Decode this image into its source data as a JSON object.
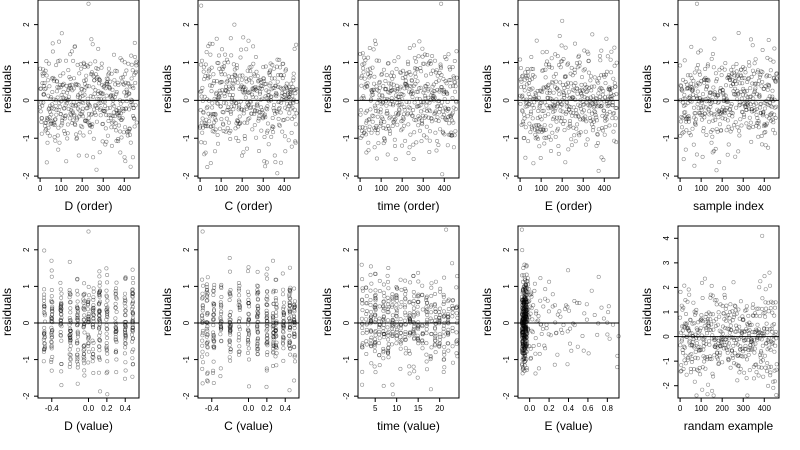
{
  "chart_data": [
    {
      "type": "scatter",
      "xlabel": "D (order)",
      "ylabel": "residuals",
      "xlim": [
        -10,
        470
      ],
      "ylim": [
        -2.05,
        2.65
      ],
      "xticks": [
        "0",
        "100",
        "200",
        "300",
        "400"
      ],
      "xtick_values": [
        0,
        100,
        200,
        300,
        400
      ],
      "yticks": [
        "-2",
        "-1",
        "0",
        "1",
        "2"
      ],
      "ytick_values": [
        -2,
        -1,
        0,
        1,
        2
      ],
      "hline": 0,
      "distribution": "order",
      "points_n": 460,
      "seed": 11,
      "outlier": {
        "x": 230,
        "y": 2.55
      }
    },
    {
      "type": "scatter",
      "xlabel": "C (order)",
      "ylabel": "residuals",
      "xlim": [
        -10,
        470
      ],
      "ylim": [
        -2.05,
        2.65
      ],
      "xticks": [
        "0",
        "100",
        "200",
        "300",
        "400"
      ],
      "xtick_values": [
        0,
        100,
        200,
        300,
        400
      ],
      "yticks": [
        "-2",
        "-1",
        "0",
        "1",
        "2"
      ],
      "ytick_values": [
        -2,
        -1,
        0,
        1,
        2
      ],
      "hline": 0,
      "distribution": "order",
      "points_n": 460,
      "seed": 23,
      "outlier": {
        "x": 5,
        "y": 2.5
      }
    },
    {
      "type": "scatter",
      "xlabel": "time (order)",
      "ylabel": "residuals",
      "xlim": [
        -10,
        470
      ],
      "ylim": [
        -2.05,
        2.65
      ],
      "xticks": [
        "0",
        "100",
        "200",
        "300",
        "400"
      ],
      "xtick_values": [
        0,
        100,
        200,
        300,
        400
      ],
      "yticks": [
        "-2",
        "-1",
        "0",
        "1",
        "2"
      ],
      "ytick_values": [
        -2,
        -1,
        0,
        1,
        2
      ],
      "hline": 0,
      "distribution": "order",
      "points_n": 460,
      "seed": 37,
      "outlier": {
        "x": 385,
        "y": 2.55
      }
    },
    {
      "type": "scatter",
      "xlabel": "E (order)",
      "ylabel": "residuals",
      "xlim": [
        -10,
        470
      ],
      "ylim": [
        -2.05,
        2.65
      ],
      "xticks": [
        "0",
        "100",
        "200",
        "300",
        "400"
      ],
      "xtick_values": [
        0,
        100,
        200,
        300,
        400
      ],
      "yticks": [
        "-2",
        "-1",
        "0",
        "1",
        "2"
      ],
      "ytick_values": [
        -2,
        -1,
        0,
        1,
        2
      ],
      "hline": 0,
      "distribution": "order",
      "points_n": 460,
      "seed": 41,
      "outlier": {
        "x": 200,
        "y": 2.1
      }
    },
    {
      "type": "scatter",
      "xlabel": "sample index",
      "ylabel": "residuals",
      "xlim": [
        -10,
        470
      ],
      "ylim": [
        -2.05,
        2.65
      ],
      "xticks": [
        "0",
        "100",
        "200",
        "300",
        "400"
      ],
      "xtick_values": [
        0,
        100,
        200,
        300,
        400
      ],
      "yticks": [
        "-2",
        "-1",
        "0",
        "1",
        "2"
      ],
      "ytick_values": [
        -2,
        -1,
        0,
        1,
        2
      ],
      "hline": 0,
      "distribution": "order",
      "points_n": 460,
      "seed": 53,
      "outlier": {
        "x": 80,
        "y": 2.55
      }
    },
    {
      "type": "scatter",
      "xlabel": "D (value)",
      "ylabel": "residuals",
      "xlim": [
        -0.55,
        0.55
      ],
      "ylim": [
        -2.05,
        2.65
      ],
      "xticks": [
        "-0.4",
        "0.0",
        "0.2",
        "0.4"
      ],
      "xtick_values": [
        -0.4,
        0.0,
        0.2,
        0.4
      ],
      "yticks": [
        "-2",
        "-1",
        "0",
        "1",
        "2"
      ],
      "ytick_values": [
        -2,
        -1,
        0,
        1,
        2
      ],
      "hline": 0,
      "distribution": "columns",
      "columns": [
        -0.48,
        -0.4,
        -0.3,
        -0.2,
        -0.12,
        -0.05,
        0.0,
        0.05,
        0.12,
        0.2,
        0.3,
        0.4,
        0.48
      ],
      "points_n": 460,
      "seed": 61,
      "outlier": {
        "x": 0.0,
        "y": 2.5
      }
    },
    {
      "type": "scatter",
      "xlabel": "C (value)",
      "ylabel": "residuals",
      "xlim": [
        -0.55,
        0.55
      ],
      "ylim": [
        -2.05,
        2.65
      ],
      "xticks": [
        "-0.4",
        "0.0",
        "0.2",
        "0.4"
      ],
      "xtick_values": [
        -0.4,
        0.0,
        0.2,
        0.4
      ],
      "yticks": [
        "-2",
        "-1",
        "0",
        "1",
        "2"
      ],
      "ytick_values": [
        -2,
        -1,
        0,
        1,
        2
      ],
      "hline": 0,
      "distribution": "columns",
      "columns": [
        -0.5,
        -0.45,
        -0.38,
        -0.3,
        -0.2,
        -0.1,
        0.0,
        0.1,
        0.2,
        0.27,
        0.3,
        0.38,
        0.45,
        0.5
      ],
      "points_n": 460,
      "seed": 71,
      "outlier": {
        "x": -0.5,
        "y": 2.5
      }
    },
    {
      "type": "scatter",
      "xlabel": "time (value)",
      "ylabel": "residuals",
      "xlim": [
        1,
        24.5
      ],
      "ylim": [
        -2.05,
        2.65
      ],
      "xticks": [
        "5",
        "10",
        "15",
        "20"
      ],
      "xtick_values": [
        5,
        10,
        15,
        20
      ],
      "yticks": [
        "-2",
        "-1",
        "0",
        "1",
        "2"
      ],
      "ytick_values": [
        -2,
        -1,
        0,
        1,
        2
      ],
      "hline": 0,
      "distribution": "columns",
      "columns": [
        2,
        3,
        4,
        5,
        6,
        7,
        8,
        9,
        10,
        11,
        12,
        13,
        14,
        15,
        16,
        17,
        18,
        19,
        20,
        21,
        22,
        23,
        24
      ],
      "points_n": 460,
      "seed": 83,
      "outlier": {
        "x": 21.5,
        "y": 2.55
      }
    },
    {
      "type": "scatter",
      "xlabel": "E (value)",
      "ylabel": "residuals",
      "xlim": [
        -0.12,
        0.92
      ],
      "ylim": [
        -2.05,
        2.65
      ],
      "xticks": [
        "0.0",
        "0.2",
        "0.4",
        "0.6",
        "0.8"
      ],
      "xtick_values": [
        0.0,
        0.2,
        0.4,
        0.6,
        0.8
      ],
      "yticks": [
        "-2",
        "-1",
        "0",
        "1",
        "2"
      ],
      "ytick_values": [
        -2,
        -1,
        0,
        1,
        2
      ],
      "hline": 0,
      "distribution": "skewed",
      "points_n": 460,
      "seed": 97,
      "outlier": {
        "x": -0.08,
        "y": 2.55
      }
    },
    {
      "type": "scatter",
      "xlabel": "randam example",
      "ylabel": "residuals",
      "xlim": [
        -10,
        470
      ],
      "ylim": [
        -2.5,
        4.5
      ],
      "xticks": [
        "0",
        "100",
        "200",
        "300",
        "400"
      ],
      "xtick_values": [
        0,
        100,
        200,
        300,
        400
      ],
      "yticks": [
        "-2",
        "-1",
        "0",
        "1",
        "2",
        "3",
        "4"
      ],
      "ytick_values": [
        -2,
        -1,
        0,
        1,
        2,
        3,
        4
      ],
      "hline": 0,
      "distribution": "order",
      "points_n": 460,
      "seed": 109,
      "outlier": {
        "x": 390,
        "y": 4.1
      }
    }
  ]
}
